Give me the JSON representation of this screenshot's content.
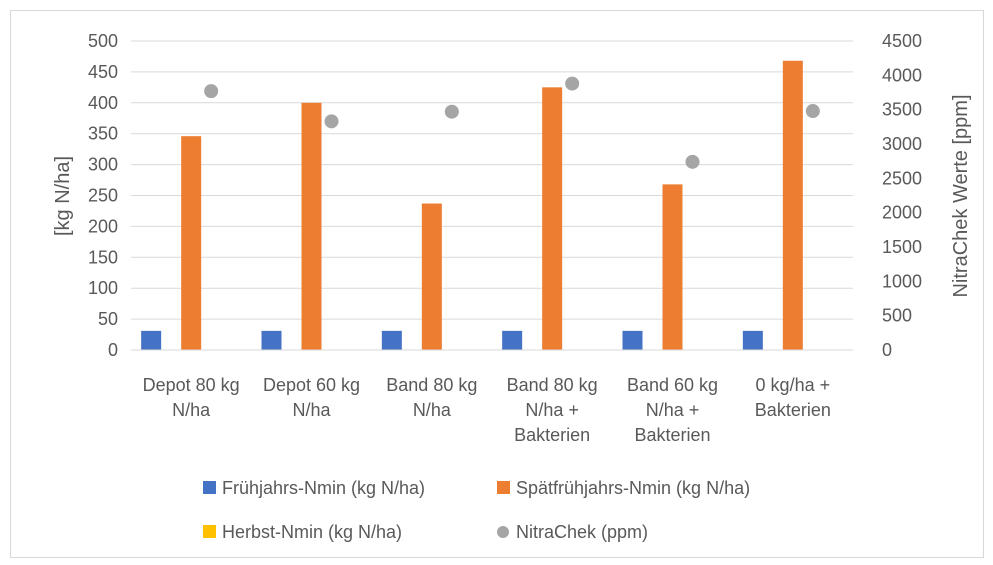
{
  "chart_data": {
    "type": "bar",
    "categories": [
      [
        "Depot 80 kg",
        "N/ha"
      ],
      [
        "Depot 60 kg",
        "N/ha"
      ],
      [
        "Band 80 kg",
        "N/ha"
      ],
      [
        "Band 80 kg",
        "N/ha +",
        "Bakterien"
      ],
      [
        "Band 60 kg",
        "N/ha +",
        "Bakterien"
      ],
      [
        "0 kg/ha +",
        "Bakterien"
      ]
    ],
    "series": [
      {
        "name": "Frühjahrs-Nmin (kg N/ha)",
        "kind": "bar",
        "axis": "left",
        "color": "#4472c4",
        "values": [
          31,
          31,
          31,
          31,
          31,
          31
        ]
      },
      {
        "name": "Spätfrühjahrs-Nmin (kg N/ha)",
        "kind": "bar",
        "axis": "left",
        "color": "#ed7d31",
        "values": [
          346,
          400,
          237,
          425,
          268,
          468
        ]
      },
      {
        "name": "Herbst-Nmin (kg N/ha)",
        "kind": "bar",
        "axis": "left",
        "color": "#ffc000",
        "values": [
          0,
          0,
          0,
          0,
          0,
          0
        ]
      },
      {
        "name": "NitraChek (ppm)",
        "kind": "scatter",
        "axis": "right",
        "color": "#a5a5a5",
        "values": [
          3770,
          3330,
          3470,
          3880,
          2740,
          3480
        ]
      }
    ],
    "ylabel": "[kg N/ha]",
    "y2label": "NitraChek Werte [ppm]",
    "ylim": [
      0,
      500
    ],
    "yticks": [
      0,
      50,
      100,
      150,
      200,
      250,
      300,
      350,
      400,
      450,
      500
    ],
    "y2lim": [
      0,
      4500
    ],
    "y2ticks": [
      0,
      500,
      1000,
      1500,
      2000,
      2500,
      3000,
      3500,
      4000,
      4500
    ],
    "grid": true,
    "legend_position": "bottom"
  }
}
